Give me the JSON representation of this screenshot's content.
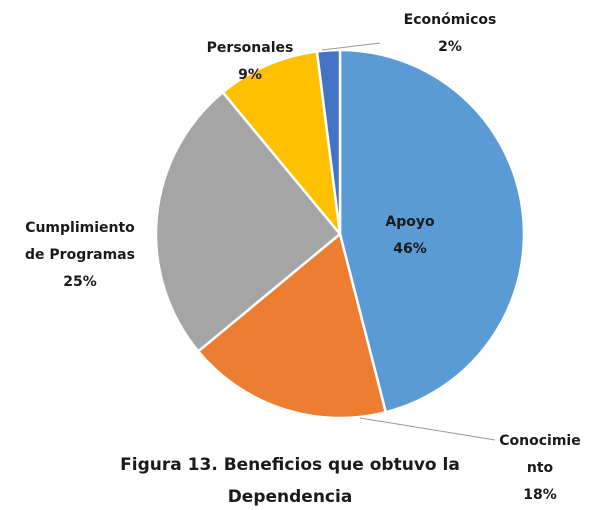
{
  "chart_data": {
    "type": "pie",
    "title": "Figura 13. Beneficios que obtuvo la\nDependencia",
    "categories": [
      "Apoyo",
      "Conocimie\nnto",
      "Cumplimiento\nde Programas",
      "Personales",
      "Económicos"
    ],
    "values": [
      46,
      18,
      25,
      9,
      2
    ],
    "value_labels": [
      "46%",
      "18%",
      "25%",
      "9%",
      "2%"
    ],
    "colors": [
      "#5b9bd5",
      "#ed7d31",
      "#a5a5a5",
      "#ffc000",
      "#4472c4"
    ]
  }
}
